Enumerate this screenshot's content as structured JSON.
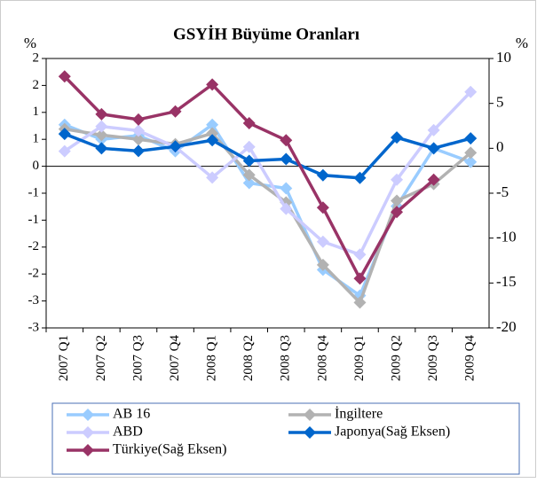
{
  "chart_data": {
    "type": "line",
    "title": "GSYİH Büyüme Oranları",
    "y_label": "%",
    "y2_label": "%",
    "categories": [
      "2007 Q1",
      "2007 Q2",
      "2007 Q3",
      "2007 Q4",
      "2008 Q1",
      "2008 Q2",
      "2008 Q3",
      "2008 Q4",
      "2009 Q1",
      "2009 Q2",
      "2009 Q3",
      "2009 Q4"
    ],
    "ylim": [
      -3,
      2
    ],
    "yticks": [
      2,
      {
        "value": 1.5,
        "label": "2"
      },
      1,
      {
        "value": 0.5,
        "label": "1"
      },
      0,
      {
        "value": -0.5,
        "label": "-1"
      },
      -1,
      {
        "value": -1.5,
        "label": "-2"
      },
      -2,
      {
        "value": -2.5,
        "label": "-3"
      },
      -3
    ],
    "y2lim": [
      -20,
      10
    ],
    "y2ticks": [
      10,
      5,
      0,
      -5,
      -10,
      -15,
      -20
    ],
    "legend": "bottom",
    "series": [
      {
        "name": "AB 16",
        "color": "#99ccff",
        "values": [
          0.77,
          0.5,
          0.57,
          0.28,
          0.77,
          -0.31,
          -0.41,
          -1.92,
          -2.4,
          -0.74,
          0.33,
          0.08
        ]
      },
      {
        "name": "İngiltere",
        "color": "#b2b2b2",
        "values": [
          0.69,
          0.58,
          0.5,
          0.41,
          0.61,
          -0.16,
          -0.67,
          -1.83,
          -2.53,
          -0.64,
          -0.33,
          0.25
        ]
      },
      {
        "name": "ABD",
        "color": "#ccccff",
        "values": [
          0.28,
          0.74,
          0.66,
          0.36,
          -0.21,
          0.36,
          -0.79,
          -1.4,
          -1.64,
          -0.25,
          0.67,
          1.38
        ]
      },
      {
        "name": "Japonya(Sağ Eksen)",
        "color": "#0066cc",
        "axis": "y2",
        "values": [
          1.6,
          0,
          -0.3,
          0.2,
          0.9,
          -1.4,
          -1.2,
          -3.0,
          -3.3,
          1.2,
          0,
          1.1
        ]
      },
      {
        "name": "Türkiye(Sağ Eksen)",
        "color": "#993366",
        "axis": "y2",
        "values": [
          8.0,
          3.8,
          3.2,
          4.1,
          7.1,
          2.8,
          0.9,
          -6.6,
          -14.5,
          -7.1,
          -3.5,
          null
        ]
      }
    ]
  }
}
